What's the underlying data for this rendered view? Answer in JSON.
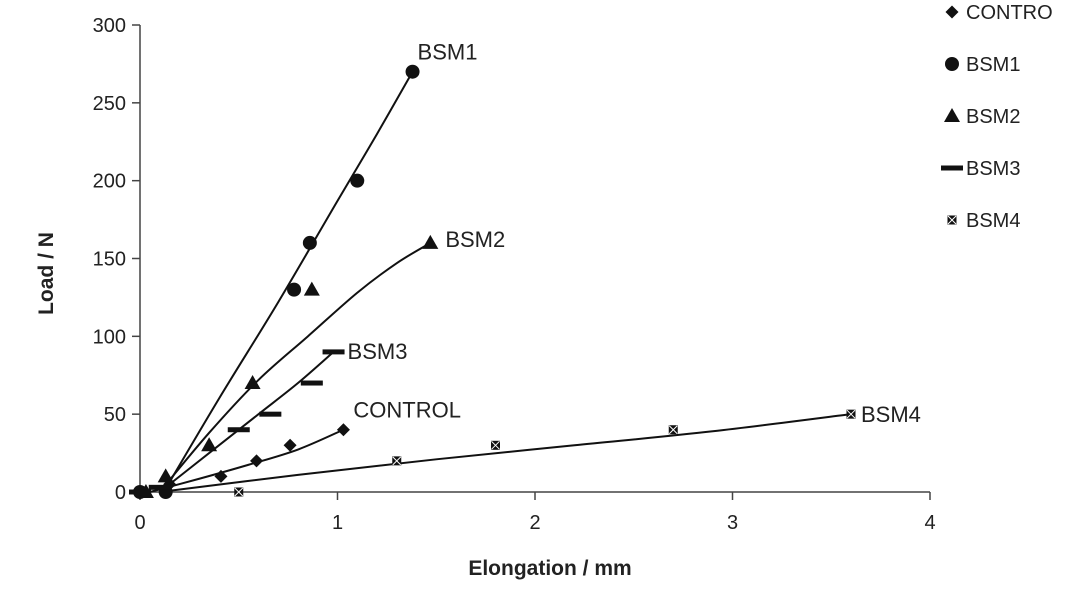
{
  "chart_data": {
    "type": "scatter",
    "xlabel": "Elongation / mm",
    "ylabel": "Load / N",
    "xlim": [
      0,
      4
    ],
    "ylim": [
      0,
      300
    ],
    "xticks": [
      0,
      1,
      2,
      3,
      4
    ],
    "yticks": [
      0,
      50,
      100,
      150,
      200,
      250,
      300
    ],
    "grid": false,
    "legend_position": "top-right",
    "series": [
      {
        "name": "CONTRO",
        "label": "CONTROL",
        "marker": "diamond",
        "points": [
          [
            0,
            0
          ],
          [
            0.15,
            5
          ],
          [
            0.41,
            10
          ],
          [
            0.59,
            20
          ],
          [
            0.76,
            30
          ],
          [
            1.03,
            40
          ]
        ],
        "curve": [
          [
            0.05,
            0
          ],
          [
            0.3,
            8.5
          ],
          [
            0.55,
            17.5
          ],
          [
            0.8,
            27.3
          ],
          [
            1.03,
            40
          ]
        ]
      },
      {
        "name": "BSM1",
        "label": "BSM1",
        "marker": "circle",
        "points": [
          [
            0,
            0
          ],
          [
            0.13,
            0
          ],
          [
            0.78,
            130
          ],
          [
            0.86,
            160
          ],
          [
            1.1,
            200
          ],
          [
            1.38,
            270
          ]
        ],
        "curve": [
          [
            0.12,
            0
          ],
          [
            0.4,
            60
          ],
          [
            0.7,
            122
          ],
          [
            1.0,
            187
          ],
          [
            1.2,
            230
          ],
          [
            1.38,
            270
          ]
        ]
      },
      {
        "name": "BSM2",
        "label": "BSM2",
        "marker": "triangle",
        "points": [
          [
            0.03,
            0
          ],
          [
            0.13,
            10
          ],
          [
            0.35,
            30
          ],
          [
            0.57,
            70
          ],
          [
            0.87,
            130
          ],
          [
            1.47,
            160
          ]
        ],
        "curve": [
          [
            0.1,
            0
          ],
          [
            0.35,
            38
          ],
          [
            0.6,
            72
          ],
          [
            0.85,
            100
          ],
          [
            1.1,
            128
          ],
          [
            1.3,
            147
          ],
          [
            1.47,
            160
          ]
        ]
      },
      {
        "name": "BSM3",
        "label": "BSM3",
        "marker": "dash",
        "points": [
          [
            0,
            0
          ],
          [
            0.1,
            3
          ],
          [
            0.5,
            40
          ],
          [
            0.66,
            50
          ],
          [
            0.87,
            70
          ],
          [
            0.98,
            90
          ]
        ],
        "curve": [
          [
            0.1,
            0
          ],
          [
            0.35,
            25
          ],
          [
            0.6,
            50
          ],
          [
            0.8,
            70
          ],
          [
            0.98,
            90
          ]
        ]
      },
      {
        "name": "BSM4",
        "label": "BSM4",
        "marker": "x-square",
        "points": [
          [
            0.5,
            0
          ],
          [
            1.3,
            20
          ],
          [
            1.8,
            30
          ],
          [
            2.7,
            40
          ],
          [
            3.6,
            50
          ]
        ],
        "curve": [
          [
            0.1,
            0
          ],
          [
            0.8,
            11
          ],
          [
            1.5,
            21
          ],
          [
            2.2,
            30
          ],
          [
            2.9,
            39
          ],
          [
            3.6,
            50
          ]
        ]
      }
    ]
  }
}
